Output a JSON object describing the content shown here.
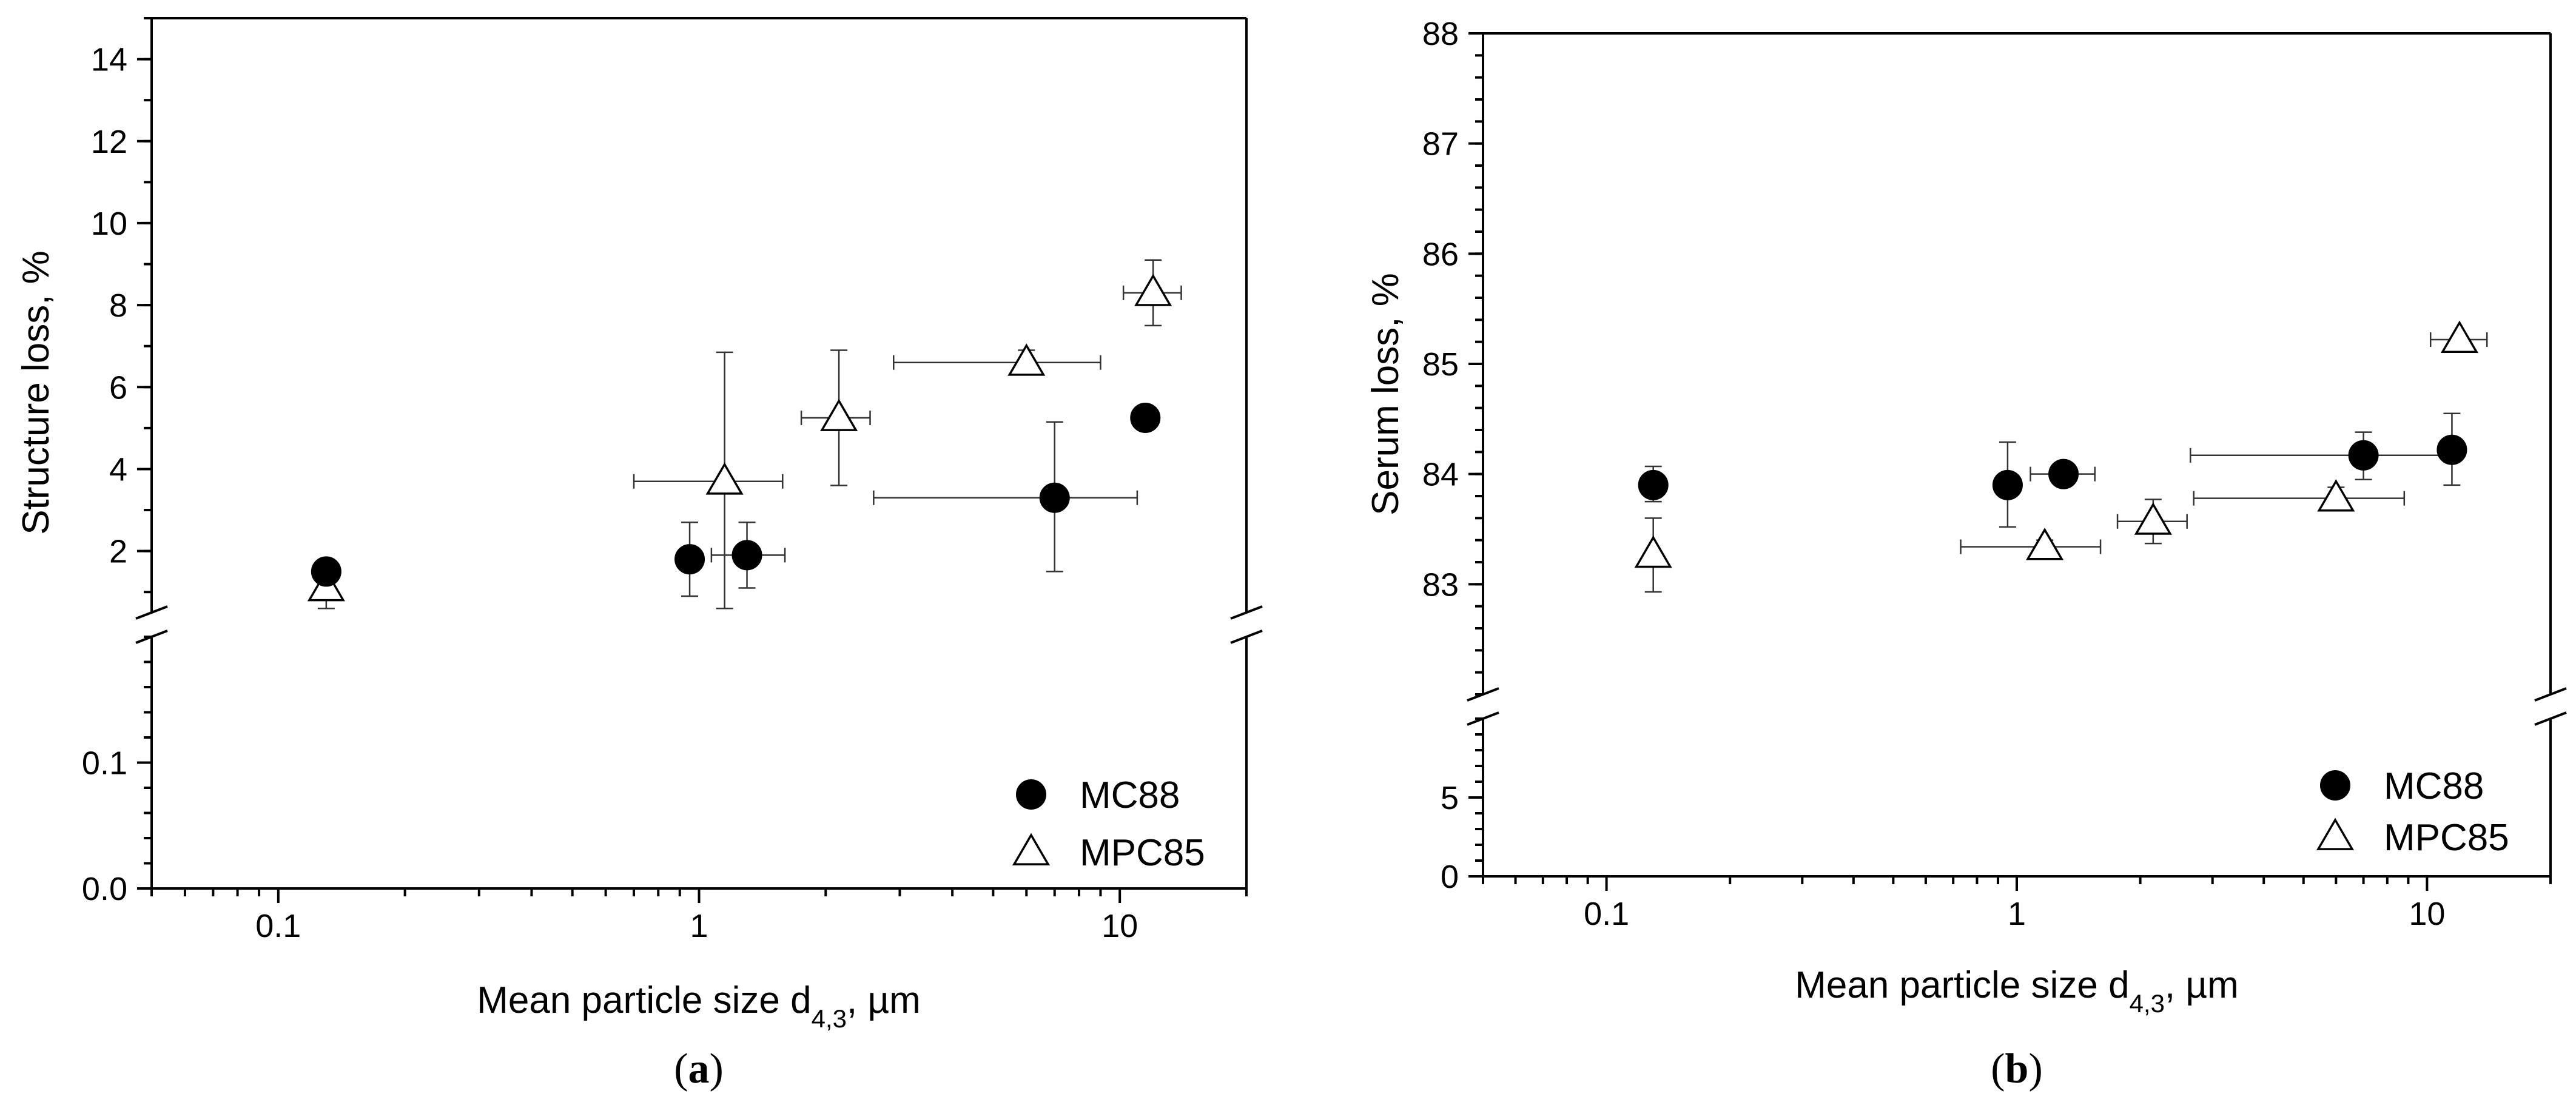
{
  "chart_data": [
    {
      "type": "scatter",
      "panel_label": "(a)",
      "panel_letter": "a",
      "xlabel_prefix": "Mean particle size d",
      "xlabel_subscript": "4,3",
      "xlabel_suffix": ", µm",
      "ylabel": "Structure loss, %",
      "x_scale": "log",
      "xlim": [
        0.05,
        20
      ],
      "x_ticks": [
        {
          "value": 0.1,
          "label": "0.1"
        },
        {
          "value": 1,
          "label": "1"
        },
        {
          "value": 10,
          "label": "10"
        }
      ],
      "y_break": true,
      "y_lower": {
        "range": [
          0,
          0.2
        ],
        "ticks": [
          {
            "value": 0,
            "label": "0.0"
          },
          {
            "value": 0.1,
            "label": "0.1"
          }
        ],
        "minor_step": 0.02
      },
      "y_upper": {
        "range": [
          0.5,
          15
        ],
        "ticks": [
          {
            "value": 2,
            "label": "2"
          },
          {
            "value": 4,
            "label": "4"
          },
          {
            "value": 6,
            "label": "6"
          },
          {
            "value": 8,
            "label": "8"
          },
          {
            "value": 10,
            "label": "10"
          },
          {
            "value": 12,
            "label": "12"
          },
          {
            "value": 14,
            "label": "14"
          }
        ],
        "minor_step": 1
      },
      "legend_position": "bottom-right",
      "series": [
        {
          "name": "MC88",
          "marker": "filled-circle",
          "points": [
            {
              "x": 0.13,
              "y": 1.5,
              "xerr": [
                0.13,
                0.13
              ],
              "yerr": [
                1.3,
                1.7
              ]
            },
            {
              "x": 0.95,
              "y": 1.8,
              "xerr": [
                0.95,
                0.95
              ],
              "yerr": [
                0.9,
                2.7
              ]
            },
            {
              "x": 1.3,
              "y": 1.9,
              "xerr": [
                1.07,
                1.6
              ],
              "yerr": [
                1.1,
                2.7
              ]
            },
            {
              "x": 7.0,
              "y": 3.3,
              "xerr": [
                2.6,
                11.0
              ],
              "yerr": [
                1.5,
                5.15
              ]
            },
            {
              "x": 11.5,
              "y": 5.25,
              "xerr": [
                11.0,
                12.0
              ],
              "yerr": [
                5.05,
                5.45
              ]
            }
          ]
        },
        {
          "name": "MPC85",
          "marker": "open-triangle",
          "points": [
            {
              "x": 0.13,
              "y": 1.1,
              "xerr": [
                0.13,
                0.13
              ],
              "yerr": [
                0.6,
                1.6
              ]
            },
            {
              "x": 1.15,
              "y": 3.7,
              "xerr": [
                0.7,
                1.58
              ],
              "yerr": [
                0.6,
                6.85
              ]
            },
            {
              "x": 2.15,
              "y": 5.25,
              "xerr": [
                1.75,
                2.55
              ],
              "yerr": [
                3.6,
                6.9
              ]
            },
            {
              "x": 6.0,
              "y": 6.6,
              "xerr": [
                2.9,
                9.0
              ],
              "yerr": [
                6.3,
                6.9
              ]
            },
            {
              "x": 12.0,
              "y": 8.3,
              "xerr": [
                10.2,
                14.0
              ],
              "yerr": [
                7.5,
                9.1
              ]
            }
          ]
        }
      ]
    },
    {
      "type": "scatter",
      "panel_label": "(b)",
      "panel_letter": "b",
      "xlabel_prefix": "Mean particle size d",
      "xlabel_subscript": "4,3",
      "xlabel_suffix": ", µm",
      "ylabel": "Serum loss, %",
      "x_scale": "log",
      "xlim": [
        0.05,
        20
      ],
      "x_ticks": [
        {
          "value": 0.1,
          "label": "0.1"
        },
        {
          "value": 1,
          "label": "1"
        },
        {
          "value": 10,
          "label": "10"
        }
      ],
      "y_break": true,
      "y_lower": {
        "range": [
          0,
          10
        ],
        "ticks": [
          {
            "value": 0,
            "label": "0"
          },
          {
            "value": 5,
            "label": "5"
          }
        ],
        "minor_step": 1
      },
      "y_upper": {
        "range": [
          82.0,
          88.0
        ],
        "ticks": [
          {
            "value": 83,
            "label": "83"
          },
          {
            "value": 84,
            "label": "84"
          },
          {
            "value": 85,
            "label": "85"
          },
          {
            "value": 86,
            "label": "86"
          },
          {
            "value": 87,
            "label": "87"
          },
          {
            "value": 88,
            "label": "88"
          }
        ],
        "minor_step": 0.2
      },
      "legend_position": "bottom-right",
      "series": [
        {
          "name": "MC88",
          "marker": "filled-circle",
          "points": [
            {
              "x": 0.13,
              "y": 83.9,
              "xerr": [
                0.13,
                0.13
              ],
              "yerr": [
                83.75,
                84.07
              ]
            },
            {
              "x": 0.95,
              "y": 83.9,
              "xerr": [
                0.95,
                0.95
              ],
              "yerr": [
                83.52,
                84.29
              ]
            },
            {
              "x": 1.3,
              "y": 84.0,
              "xerr": [
                1.08,
                1.55
              ],
              "yerr": [
                84.0,
                84.0
              ]
            },
            {
              "x": 7.0,
              "y": 84.17,
              "xerr": [
                2.65,
                11.0
              ],
              "yerr": [
                83.95,
                84.38
              ]
            },
            {
              "x": 11.5,
              "y": 84.22,
              "xerr": [
                11.5,
                11.5
              ],
              "yerr": [
                83.9,
                84.55
              ]
            }
          ]
        },
        {
          "name": "MPC85",
          "marker": "open-triangle",
          "points": [
            {
              "x": 0.13,
              "y": 83.27,
              "xerr": [
                0.13,
                0.13
              ],
              "yerr": [
                82.93,
                83.6
              ]
            },
            {
              "x": 1.17,
              "y": 83.34,
              "xerr": [
                0.73,
                1.6
              ],
              "yerr": [
                83.28,
                83.4
              ]
            },
            {
              "x": 2.15,
              "y": 83.57,
              "xerr": [
                1.76,
                2.6
              ],
              "yerr": [
                83.37,
                83.77
              ]
            },
            {
              "x": 6.0,
              "y": 83.78,
              "xerr": [
                2.7,
                8.8
              ],
              "yerr": [
                83.68,
                83.88
              ]
            },
            {
              "x": 12.0,
              "y": 85.22,
              "xerr": [
                10.2,
                14.0
              ],
              "yerr": [
                85.22,
                85.22
              ]
            }
          ]
        }
      ]
    }
  ]
}
